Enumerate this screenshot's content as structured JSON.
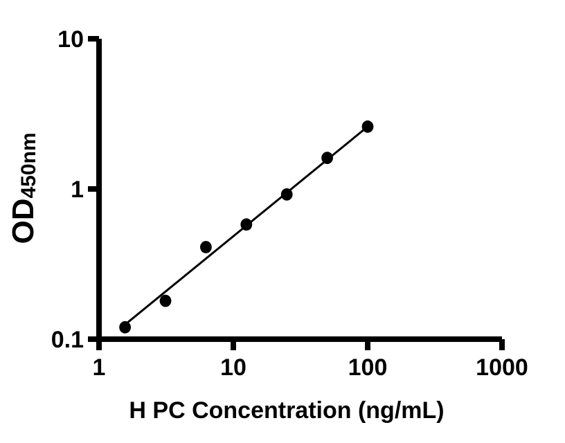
{
  "figure": {
    "background_color": "#ffffff",
    "axis_color": "#000000",
    "marker_color": "#000000",
    "fit_line_color": "#000000"
  },
  "chart_data": {
    "type": "scatter",
    "title": "",
    "xlabel": "H PC Concentration (ng/mL)",
    "ylabel": "OD",
    "ylabel_subscript": "450nm",
    "x_scale": "log10",
    "y_scale": "log10",
    "xlim": [
      1,
      1000
    ],
    "ylim": [
      0.1,
      10
    ],
    "x_ticks": [
      1,
      10,
      100,
      1000
    ],
    "x_tick_labels": [
      "1",
      "10",
      "100",
      "1000"
    ],
    "y_ticks": [
      0.1,
      1,
      10
    ],
    "y_tick_labels": [
      "0.1",
      "1",
      "10"
    ],
    "grid": false,
    "legend": false,
    "series": [
      {
        "name": "fit-line",
        "type": "line",
        "color": "#000000",
        "x": [
          1.5625,
          100
        ],
        "y": [
          0.125,
          2.6
        ]
      },
      {
        "name": "standard-points",
        "type": "scatter",
        "marker": "circle",
        "color": "#000000",
        "x": [
          1.5625,
          3.125,
          6.25,
          12.5,
          25,
          50,
          100
        ],
        "y": [
          0.12,
          0.18,
          0.41,
          0.58,
          0.92,
          1.61,
          2.6
        ]
      }
    ]
  }
}
